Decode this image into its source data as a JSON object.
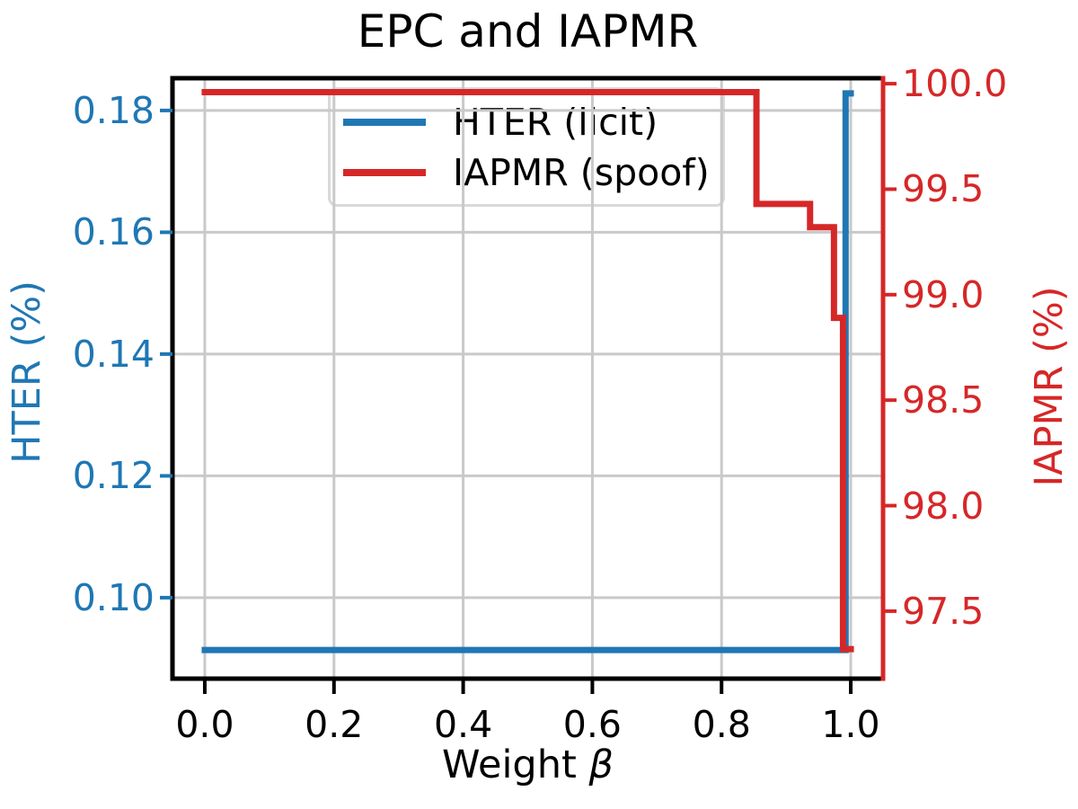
{
  "chart_data": {
    "type": "line",
    "title": "EPC and IAPMR",
    "xlabel": {
      "text": "Weight",
      "symbol": "β"
    },
    "x_axis": {
      "tick_labels": [
        "0.0",
        "0.2",
        "0.4",
        "0.6",
        "0.8",
        "1.0"
      ],
      "tick_values": [
        0.0,
        0.2,
        0.4,
        0.6,
        0.8,
        1.0
      ],
      "xlim": [
        -0.05,
        1.05
      ],
      "color": "#000000"
    },
    "axes": {
      "left": {
        "label": "HTER (%)",
        "color": "#1f77b4",
        "tick_labels": [
          "0.18",
          "0.16",
          "0.14",
          "0.12",
          "0.10"
        ],
        "tick_values": [
          0.18,
          0.16,
          0.14,
          0.12,
          0.1
        ],
        "ylim": [
          0.0867,
          0.1853
        ]
      },
      "right": {
        "label": "IAPMR (%)",
        "color": "#d62728",
        "tick_labels": [
          "100.0",
          "99.5",
          "99.0",
          "98.5",
          "98.0",
          "97.5"
        ],
        "tick_values": [
          100.0,
          99.5,
          99.0,
          98.5,
          98.0,
          97.5
        ],
        "ylim": [
          97.18,
          100.026
        ]
      }
    },
    "grid": {
      "show": true,
      "color": "#c9c9c9"
    },
    "series": [
      {
        "name": "HTER (licit)",
        "axis": "left",
        "color": "#1f77b4",
        "points": [
          [
            0.0,
            0.0914
          ],
          [
            0.992,
            0.0914
          ],
          [
            0.992,
            0.1828
          ],
          [
            1.0,
            0.1828
          ]
        ]
      },
      {
        "name": "IAPMR (spoof)",
        "axis": "right",
        "color": "#d62728",
        "points": [
          [
            0.0,
            99.96
          ],
          [
            0.854,
            99.96
          ],
          [
            0.854,
            99.43
          ],
          [
            0.937,
            99.43
          ],
          [
            0.937,
            99.32
          ],
          [
            0.974,
            99.32
          ],
          [
            0.974,
            98.89
          ],
          [
            0.988,
            98.89
          ],
          [
            0.988,
            97.32
          ],
          [
            1.0,
            97.32
          ]
        ]
      }
    ],
    "legend": {
      "entries": [
        {
          "label": "HTER (licit)",
          "color": "#1f77b4"
        },
        {
          "label": "IAPMR (spoof)",
          "color": "#d62728"
        }
      ]
    }
  }
}
